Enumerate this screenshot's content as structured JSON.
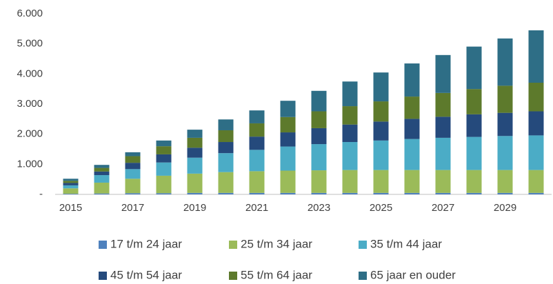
{
  "chart_data": {
    "type": "stacked_bar",
    "categories": [
      "2015",
      null,
      "2017",
      null,
      "2019",
      null,
      "2021",
      null,
      "2023",
      null,
      "2025",
      null,
      "2027",
      null,
      "2029",
      null
    ],
    "ylim": [
      0,
      6000
    ],
    "yticks": [
      {
        "value": 0,
        "label": "-"
      },
      {
        "value": 1000,
        "label": "1.000"
      },
      {
        "value": 2000,
        "label": "2.000"
      },
      {
        "value": 3000,
        "label": "3.000"
      },
      {
        "value": 4000,
        "label": "4.000"
      },
      {
        "value": 5000,
        "label": "5.000"
      },
      {
        "value": 6000,
        "label": "6.000"
      }
    ],
    "grid": false,
    "legend": "bottom",
    "series": [
      {
        "name": "17 t/m 24 jaar",
        "color": "#4f81bd",
        "values": [
          20,
          30,
          40,
          40,
          50,
          50,
          50,
          50,
          50,
          50,
          50,
          50,
          50,
          50,
          50,
          50
        ]
      },
      {
        "name": "25 t/m 34 jaar",
        "color": "#9bbb59",
        "values": [
          180,
          360,
          480,
          580,
          640,
          690,
          720,
          740,
          750,
          760,
          760,
          760,
          760,
          760,
          760,
          760
        ]
      },
      {
        "name": "35 t/m 44 jaar",
        "color": "#4bacc6",
        "values": [
          100,
          250,
          320,
          440,
          530,
          630,
          710,
          800,
          870,
          930,
          980,
          1030,
          1070,
          1100,
          1130,
          1150
        ]
      },
      {
        "name": "45 t/m 54 jaar",
        "color": "#254a7c",
        "values": [
          80,
          120,
          210,
          270,
          330,
          370,
          440,
          470,
          530,
          580,
          630,
          670,
          700,
          750,
          770,
          800
        ]
      },
      {
        "name": "55 t/m 64 jaar",
        "color": "#5d7a2c",
        "values": [
          70,
          120,
          220,
          270,
          330,
          390,
          440,
          510,
          560,
          610,
          670,
          740,
          790,
          840,
          900,
          950
        ]
      },
      {
        "name": "65 jaar en ouder",
        "color": "#2e6e86",
        "values": [
          70,
          100,
          130,
          190,
          270,
          360,
          430,
          540,
          680,
          820,
          960,
          1100,
          1260,
          1410,
          1570,
          1740
        ]
      }
    ]
  }
}
